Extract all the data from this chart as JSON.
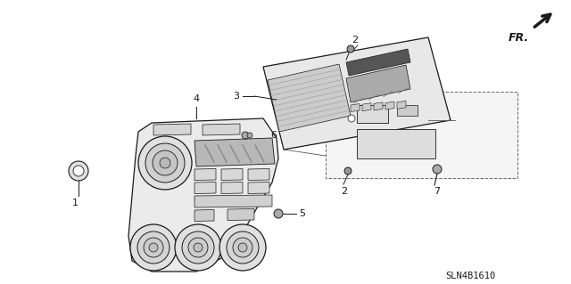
{
  "background_color": "#ffffff",
  "line_color": "#1a1a1a",
  "part_code": "SLN4B1610",
  "fr_label": "FR.",
  "figsize": [
    6.4,
    3.19
  ],
  "dpi": 100,
  "panel_fill": "#f0f0f0",
  "panel_edge": "#1a1a1a",
  "dark_fill": "#888888",
  "mid_fill": "#bbbbbb",
  "light_fill": "#e8e8e8",
  "grille_fill": "#666666"
}
